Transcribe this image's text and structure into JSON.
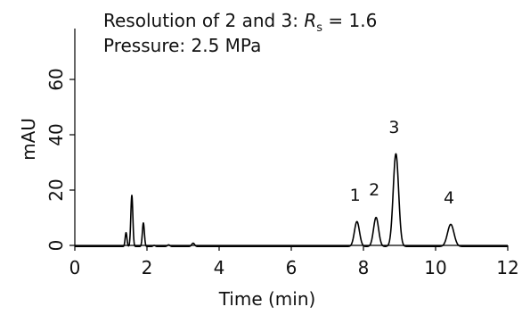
{
  "chart_data": {
    "type": "line",
    "title": "",
    "xlabel": "Time (min)",
    "ylabel": "mAU",
    "xlim": [
      0,
      12
    ],
    "ylim": [
      -5,
      80
    ],
    "x_ticks": [
      0,
      2,
      4,
      6,
      8,
      10,
      12
    ],
    "y_ticks": [
      0,
      20,
      40,
      60
    ],
    "grid": false,
    "legend": "none",
    "line_color": "#000000",
    "annotations": [
      {
        "prefix": "Resolution of 2 and 3: ",
        "symbol": "R",
        "subscript": "s",
        "suffix": " = 1.6"
      },
      {
        "text": "Pressure: 2.5 MPa"
      }
    ],
    "peak_labels": [
      {
        "label": "1",
        "x": 7.82,
        "y": 9
      },
      {
        "label": "2",
        "x": 8.35,
        "y": 11
      },
      {
        "label": "3",
        "x": 8.9,
        "y": 33.5
      },
      {
        "label": "4",
        "x": 10.42,
        "y": 8
      }
    ],
    "series": [
      {
        "peaks": [
          {
            "center": 1.42,
            "height": 5,
            "width": 0.025
          },
          {
            "center": 1.58,
            "height": 18.5,
            "width": 0.028
          },
          {
            "center": 1.9,
            "height": 8.5,
            "width": 0.028
          },
          {
            "center": 2.2,
            "height": 0.4,
            "width": 0.03
          },
          {
            "center": 2.6,
            "height": 0.6,
            "width": 0.035
          },
          {
            "center": 3.28,
            "height": 1.2,
            "width": 0.04
          },
          {
            "center": 7.82,
            "height": 9,
            "width": 0.07
          },
          {
            "center": 8.35,
            "height": 10.5,
            "width": 0.07
          },
          {
            "center": 8.9,
            "height": 33.5,
            "width": 0.075
          },
          {
            "center": 10.42,
            "height": 8,
            "width": 0.09
          }
        ],
        "baseline": -0.4
      }
    ]
  }
}
